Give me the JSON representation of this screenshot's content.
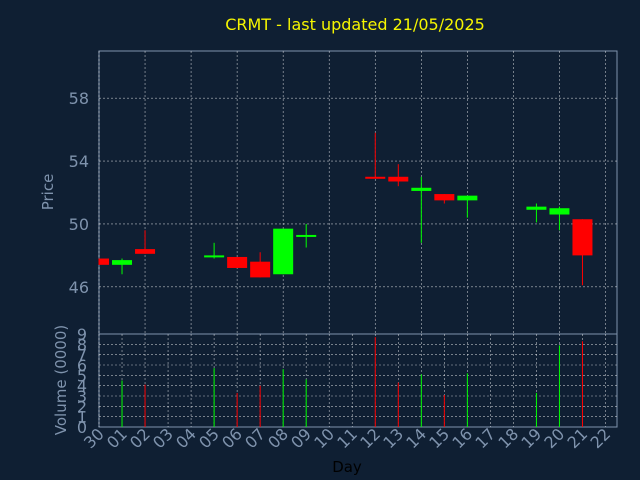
{
  "title": "CRMT - last updated 21/05/2025",
  "colors": {
    "background": "#0f1f33",
    "axis": "#7f93ad",
    "grid": "#ffffff",
    "title": "#f5f500",
    "up": "#00ff00",
    "down": "#ff0000"
  },
  "chart_data": [
    {
      "type": "candlestick",
      "ylabel": "Price",
      "xlabel": "",
      "ylim": [
        43,
        61
      ],
      "yticks": [
        46,
        50,
        54,
        58
      ],
      "grid": true,
      "categories": [
        "30",
        "01",
        "02",
        "03",
        "04",
        "05",
        "06",
        "07",
        "08",
        "09",
        "10",
        "11",
        "12",
        "13",
        "14",
        "15",
        "16",
        "17",
        "18",
        "19",
        "20",
        "21",
        "22"
      ],
      "candles": [
        {
          "day": "30",
          "open": 47.8,
          "high": 47.8,
          "low": 47.4,
          "close": 47.4,
          "dir": "down"
        },
        {
          "day": "01",
          "open": 47.4,
          "high": 47.8,
          "low": 46.8,
          "close": 47.7,
          "dir": "up"
        },
        {
          "day": "02",
          "open": 48.4,
          "high": 49.6,
          "low": 48.1,
          "close": 48.1,
          "dir": "down"
        },
        {
          "day": "05",
          "open": 47.9,
          "high": 48.8,
          "low": 47.8,
          "close": 48.0,
          "dir": "up"
        },
        {
          "day": "06",
          "open": 47.9,
          "high": 47.9,
          "low": 47.2,
          "close": 47.2,
          "dir": "down"
        },
        {
          "day": "07",
          "open": 47.6,
          "high": 48.2,
          "low": 46.6,
          "close": 46.6,
          "dir": "down"
        },
        {
          "day": "08",
          "open": 46.8,
          "high": 49.7,
          "low": 46.8,
          "close": 49.7,
          "dir": "up"
        },
        {
          "day": "09",
          "open": 49.2,
          "high": 50.0,
          "low": 48.5,
          "close": 49.3,
          "dir": "up"
        },
        {
          "day": "12",
          "open": 53.0,
          "high": 55.8,
          "low": 52.9,
          "close": 52.9,
          "dir": "down"
        },
        {
          "day": "13",
          "open": 53.0,
          "high": 53.8,
          "low": 52.4,
          "close": 52.7,
          "dir": "down"
        },
        {
          "day": "14",
          "open": 52.1,
          "high": 53.0,
          "low": 48.8,
          "close": 52.3,
          "dir": "up"
        },
        {
          "day": "15",
          "open": 51.9,
          "high": 51.9,
          "low": 51.3,
          "close": 51.5,
          "dir": "down"
        },
        {
          "day": "16",
          "open": 51.5,
          "high": 51.8,
          "low": 50.4,
          "close": 51.8,
          "dir": "up"
        },
        {
          "day": "19",
          "open": 50.9,
          "high": 51.3,
          "low": 50.1,
          "close": 51.1,
          "dir": "up"
        },
        {
          "day": "20",
          "open": 50.6,
          "high": 51.1,
          "low": 49.6,
          "close": 51.0,
          "dir": "up"
        },
        {
          "day": "21",
          "open": 50.3,
          "high": 50.3,
          "low": 46.1,
          "close": 48.0,
          "dir": "down"
        }
      ]
    },
    {
      "type": "bar",
      "ylabel": "Volume (0000)",
      "xlabel": "Day",
      "ylim": [
        0,
        9
      ],
      "yticks": [
        0,
        1,
        2,
        3,
        4,
        5,
        6,
        7,
        8,
        9
      ],
      "grid": true,
      "categories": [
        "30",
        "01",
        "02",
        "03",
        "04",
        "05",
        "06",
        "07",
        "08",
        "09",
        "10",
        "11",
        "12",
        "13",
        "14",
        "15",
        "16",
        "17",
        "18",
        "19",
        "20",
        "21",
        "22"
      ],
      "bars": [
        {
          "day": "01",
          "value": 4.5,
          "dir": "up"
        },
        {
          "day": "02",
          "value": 4.1,
          "dir": "down"
        },
        {
          "day": "05",
          "value": 5.7,
          "dir": "up"
        },
        {
          "day": "06",
          "value": 3.3,
          "dir": "down"
        },
        {
          "day": "07",
          "value": 4.0,
          "dir": "down"
        },
        {
          "day": "08",
          "value": 5.6,
          "dir": "up"
        },
        {
          "day": "09",
          "value": 4.6,
          "dir": "up"
        },
        {
          "day": "12",
          "value": 8.7,
          "dir": "down"
        },
        {
          "day": "13",
          "value": 4.3,
          "dir": "down"
        },
        {
          "day": "14",
          "value": 5.1,
          "dir": "up"
        },
        {
          "day": "15",
          "value": 3.1,
          "dir": "down"
        },
        {
          "day": "16",
          "value": 5.2,
          "dir": "up"
        },
        {
          "day": "19",
          "value": 3.3,
          "dir": "up"
        },
        {
          "day": "20",
          "value": 7.9,
          "dir": "up"
        },
        {
          "day": "21",
          "value": 8.3,
          "dir": "down"
        }
      ]
    }
  ]
}
